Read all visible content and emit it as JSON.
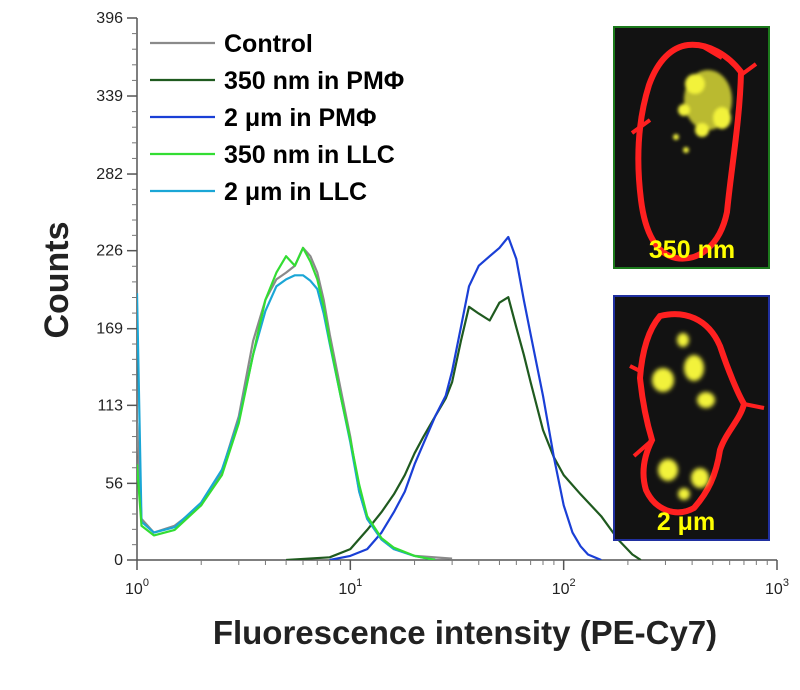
{
  "chart_data": {
    "type": "line",
    "xscale": "log",
    "xlim": [
      1,
      1000
    ],
    "ylim": [
      0,
      396
    ],
    "xlabel": "Fluorescence intensity (PE-Cy7)",
    "ylabel": "Counts",
    "yticks": [
      0,
      56,
      113,
      169,
      226,
      282,
      339,
      396
    ],
    "xticks": [
      {
        "base": "10",
        "exp": "0"
      },
      {
        "base": "10",
        "exp": "1"
      },
      {
        "base": "10",
        "exp": "2"
      },
      {
        "base": "10",
        "exp": "3"
      }
    ],
    "legend_position": "top-left",
    "series": [
      {
        "name": "Control",
        "color": "#8a8a8a",
        "x": [
          1,
          1.05,
          1.2,
          1.5,
          2,
          2.5,
          3,
          3.5,
          4,
          4.5,
          5,
          5.5,
          6,
          6.5,
          7,
          7.5,
          8,
          9,
          10,
          11,
          12,
          14,
          16,
          20,
          30
        ],
        "y": [
          100,
          30,
          20,
          25,
          40,
          65,
          105,
          160,
          190,
          205,
          210,
          215,
          228,
          222,
          210,
          190,
          165,
          125,
          90,
          50,
          30,
          15,
          8,
          3,
          1
        ]
      },
      {
        "name": "350 nm in PMΦ",
        "color": "#1f5a1f",
        "x": [
          5,
          8,
          10,
          12,
          14,
          16,
          18,
          20,
          22,
          25,
          28,
          30,
          33,
          36,
          40,
          45,
          50,
          55,
          60,
          65,
          70,
          80,
          90,
          100,
          120,
          150,
          180,
          210,
          230
        ],
        "y": [
          0,
          2,
          8,
          22,
          35,
          48,
          62,
          78,
          90,
          105,
          118,
          130,
          160,
          185,
          180,
          175,
          188,
          192,
          170,
          150,
          130,
          95,
          75,
          62,
          48,
          32,
          15,
          4,
          0
        ]
      },
      {
        "name": "2 μm in PMΦ",
        "color": "#1a3fd6",
        "x": [
          8,
          10,
          12,
          14,
          16,
          18,
          20,
          22,
          25,
          28,
          30,
          33,
          36,
          40,
          45,
          50,
          55,
          60,
          65,
          70,
          80,
          90,
          100,
          110,
          120,
          130,
          150
        ],
        "y": [
          0,
          3,
          8,
          20,
          35,
          50,
          70,
          85,
          105,
          120,
          138,
          170,
          200,
          215,
          222,
          228,
          236,
          220,
          190,
          165,
          120,
          75,
          40,
          20,
          10,
          4,
          0
        ]
      },
      {
        "name": "350 nm in LLC",
        "color": "#33dd33",
        "x": [
          1,
          1.05,
          1.2,
          1.5,
          2,
          2.5,
          3,
          3.5,
          4,
          4.5,
          5,
          5.5,
          6,
          6.5,
          7,
          7.5,
          8,
          9,
          10,
          11,
          12,
          14,
          16,
          20,
          25
        ],
        "y": [
          70,
          25,
          18,
          22,
          40,
          62,
          100,
          150,
          190,
          210,
          222,
          215,
          228,
          218,
          205,
          185,
          160,
          120,
          88,
          55,
          32,
          16,
          9,
          3,
          0
        ]
      },
      {
        "name": "2 μm in LLC",
        "color": "#1aa6d6",
        "x": [
          1,
          1.05,
          1.2,
          1.5,
          2,
          2.5,
          3,
          3.5,
          4,
          4.5,
          5,
          5.5,
          6,
          6.5,
          7,
          7.5,
          8,
          9,
          10,
          11,
          12,
          14,
          16,
          20,
          25
        ],
        "y": [
          195,
          28,
          20,
          24,
          42,
          66,
          102,
          150,
          182,
          200,
          205,
          208,
          208,
          204,
          198,
          180,
          158,
          120,
          86,
          50,
          30,
          15,
          8,
          3,
          0
        ]
      }
    ],
    "insets": [
      {
        "label": "350 nm",
        "border_color": "#1c7a1c"
      },
      {
        "label": "2 μm",
        "border_color": "#2030a0"
      }
    ]
  }
}
